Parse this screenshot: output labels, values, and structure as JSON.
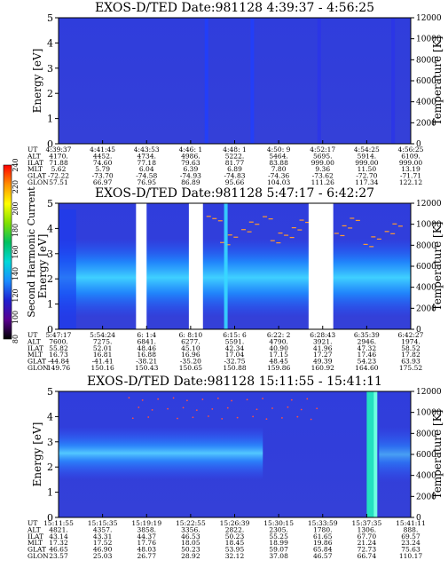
{
  "chart_data": [
    {
      "type": "heatmap",
      "title": "EXOS-D/TED   Date:981128   4:39:37 - 4:56:25",
      "ylabel": "Energy [eV]",
      "y2label": "Temperature [K]",
      "ylim": [
        0,
        5
      ],
      "y2lim": [
        0,
        12000
      ],
      "yticks": [
        "0",
        "1",
        "2",
        "3",
        "4",
        "5"
      ],
      "y2ticks": [
        "0",
        "2000",
        "4000",
        "6000",
        "8000",
        "10000",
        "12000"
      ],
      "row_labels": [
        "UT",
        "ALT",
        "ILAT",
        "MLT",
        "GLAT",
        "GLON"
      ],
      "columns": [
        [
          "4:39:37",
          "4170.",
          "71.88",
          "5.62",
          "-72.22",
          "57.51"
        ],
        [
          "4:41:45",
          "4452.",
          "74.60",
          "5.79",
          "-73.70",
          "66.97"
        ],
        [
          "4:43:53",
          "4734.",
          "77.18",
          "6.04",
          "-74.58",
          "76.95"
        ],
        [
          "4:46: 1",
          "4986.",
          "79.63",
          "6.39",
          "-74.93",
          "86.89"
        ],
        [
          "4:48: 1",
          "5222.",
          "81.77",
          "6.89",
          "-74.83",
          "95.66"
        ],
        [
          "4:50: 9",
          "5464.",
          "83.88",
          "7.80",
          "-74.36",
          "104.03"
        ],
        [
          "4:52:17",
          "5695.",
          "999.00",
          "9.36",
          "-73.62",
          "111.26"
        ],
        [
          "4:54:25",
          "5914.",
          "999.00",
          "11.50",
          "-72.70",
          "117.34"
        ],
        [
          "4:56:25",
          "6109.",
          "999.00",
          "13.19",
          "-71.71",
          "122.12"
        ]
      ],
      "features": [
        {
          "kind": "streak",
          "t": 0.42,
          "color": "#1f3fff"
        },
        {
          "kind": "streak",
          "t": 0.55,
          "color": "#1f3fff"
        },
        {
          "kind": "streak",
          "t": 0.74,
          "color": "#2a35e8"
        },
        {
          "kind": "streak",
          "t": 0.95,
          "color": "#2a35e8"
        }
      ]
    },
    {
      "type": "heatmap",
      "title": "EXOS-D/TED   Date:981128   5:47:17 - 6:42:27",
      "ylabel": "Energy [eV]",
      "y2label": "Temperature [K]",
      "ylim": [
        0,
        5
      ],
      "y2lim": [
        0,
        12000
      ],
      "yticks": [
        "0",
        "1",
        "2",
        "3",
        "4",
        "5"
      ],
      "y2ticks": [
        "0",
        "2000",
        "4000",
        "6000",
        "8000",
        "10000",
        "12000"
      ],
      "row_labels": [
        "UT",
        "ALT",
        "ILAT",
        "MLT",
        "GLAT",
        "GLON"
      ],
      "columns": [
        [
          "5:47:17",
          "7600.",
          "55.82",
          "16.73",
          "-44.84",
          "149.76"
        ],
        [
          "5:54:24",
          "7275.",
          "52.01",
          "16.81",
          "-41.41",
          "150.16"
        ],
        [
          "6: 1:4",
          "6841.",
          "48.46",
          "16.88",
          "-38.21",
          "150.43"
        ],
        [
          "6: 8:10",
          "6277.",
          "45.10",
          "16.96",
          "-35.20",
          "150.65"
        ],
        [
          "6:15: 6",
          "5591.",
          "42.34",
          "17.04",
          "-32.75",
          "150.88"
        ],
        [
          "6:22: 2",
          "4790.",
          "40.90",
          "17.15",
          "48.45",
          "159.86"
        ],
        [
          "6:28:43",
          "3921.",
          "41.96",
          "17.27",
          "49.39",
          "160.92"
        ],
        [
          "6:35:39",
          "2946.",
          "47.32",
          "17.46",
          "54.23",
          "164.60"
        ],
        [
          "6:42:27",
          "1974.",
          "58.52",
          "17.82",
          "63.93",
          "175.52"
        ]
      ],
      "gaps": [
        [
          0.22,
          0.25
        ],
        [
          0.37,
          0.41
        ],
        [
          0.71,
          0.78
        ]
      ],
      "colorbar": {
        "label": "Second Harmonic Current",
        "ticks": [
          "80",
          "100",
          "120",
          "140",
          "160",
          "180",
          "200",
          "220",
          "240"
        ],
        "colors": [
          "#000000",
          "#5a0090",
          "#2020d0",
          "#1a8cff",
          "#00d8d8",
          "#00c060",
          "#80e000",
          "#ffff00",
          "#ff9000",
          "#ff0000"
        ]
      }
    },
    {
      "type": "heatmap",
      "title": "EXOS-D/TED   Date:981128   15:11:55 - 15:41:11",
      "ylabel": "Energy [eV]",
      "y2label": "Temperature [K]",
      "ylim": [
        0,
        5
      ],
      "y2lim": [
        0,
        12000
      ],
      "yticks": [
        "0",
        "1",
        "2",
        "3",
        "4",
        "5"
      ],
      "y2ticks": [
        "0",
        "2000",
        "4000",
        "6000",
        "8000",
        "10000",
        "12000"
      ],
      "row_labels": [
        "UT",
        "ALT",
        "ILAT",
        "MLT",
        "GLAT",
        "GLON"
      ],
      "columns": [
        [
          "15:11:55",
          "4821.",
          "43.14",
          "17.32",
          "46.65",
          "23.57"
        ],
        [
          "15:15:35",
          "4357.",
          "43.31",
          "17.52",
          "46.90",
          "25.03"
        ],
        [
          "15:19:19",
          "3858.",
          "44.37",
          "17.76",
          "48.03",
          "26.77"
        ],
        [
          "15:22:55",
          "3356.",
          "46.53",
          "18.05",
          "50.23",
          "28.92"
        ],
        [
          "15:26:39",
          "2822.",
          "50.23",
          "18.45",
          "53.95",
          "32.12"
        ],
        [
          "15:30:15",
          "2305.",
          "55.25",
          "18.99",
          "59.07",
          "37.08"
        ],
        [
          "15:33:59",
          "1780.",
          "61.65",
          "19.86",
          "65.84",
          "46.57"
        ],
        [
          "15:37:35",
          "1306.",
          "67.70",
          "21.24",
          "72.73",
          "66.74"
        ],
        [
          "15:41:11",
          "888.",
          "69.57",
          "23.24",
          "75.63",
          "110.17"
        ]
      ]
    }
  ]
}
